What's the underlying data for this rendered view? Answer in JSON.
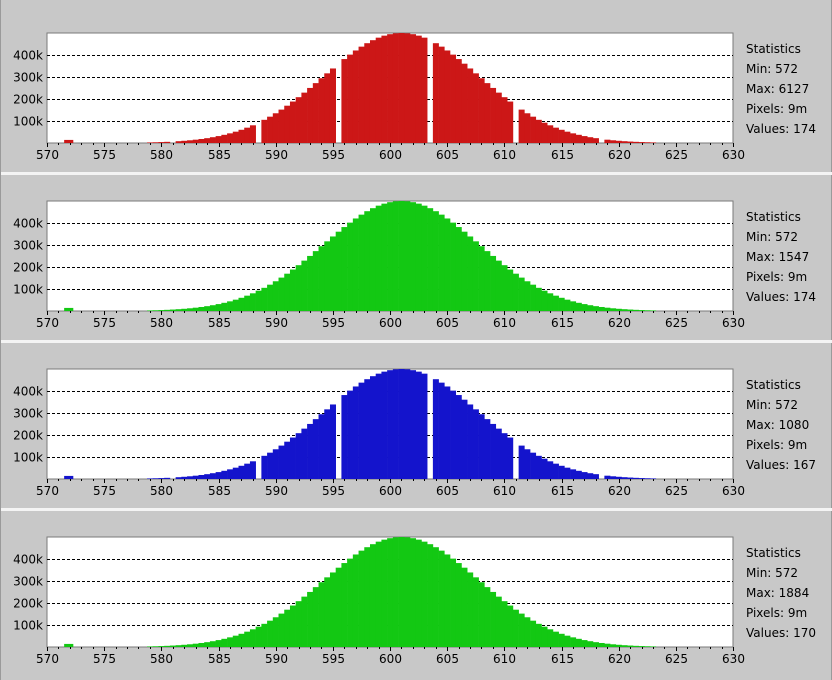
{
  "chart_data": [
    {
      "type": "bar",
      "color": "#cc1717",
      "x_range": [
        570,
        630
      ],
      "x_ticks": [
        "570",
        "575",
        "580",
        "585",
        "590",
        "595",
        "600",
        "605",
        "610",
        "615",
        "620",
        "625",
        "630"
      ],
      "y_ticks": [
        "100k",
        "200k",
        "300k",
        "400k"
      ],
      "y_max": 500000,
      "grid": true,
      "gaps": [
        572,
        573,
        574,
        578,
        581,
        588.5,
        595.5,
        603.5,
        611,
        618.5,
        626
      ],
      "statistics": {
        "title": "Statistics",
        "min": "Min: 572",
        "max": "Max: 6127",
        "pixels": "Pixels: 9m",
        "values": "Values: 174"
      }
    },
    {
      "type": "bar",
      "color": "#13c813",
      "x_range": [
        570,
        630
      ],
      "x_ticks": [
        "570",
        "575",
        "580",
        "585",
        "590",
        "595",
        "600",
        "605",
        "610",
        "615",
        "620",
        "625",
        "630"
      ],
      "y_ticks": [
        "100k",
        "200k",
        "300k",
        "400k"
      ],
      "y_max": 500000,
      "grid": true,
      "gaps": [],
      "statistics": {
        "title": "Statistics",
        "min": "Min: 572",
        "max": "Max: 1547",
        "pixels": "Pixels: 9m",
        "values": "Values: 174"
      }
    },
    {
      "type": "bar",
      "color": "#1414cc",
      "x_range": [
        570,
        630
      ],
      "x_ticks": [
        "570",
        "575",
        "580",
        "585",
        "590",
        "595",
        "600",
        "605",
        "610",
        "615",
        "620",
        "625",
        "630"
      ],
      "y_ticks": [
        "100k",
        "200k",
        "300k",
        "400k"
      ],
      "y_max": 500000,
      "grid": true,
      "gaps": [
        572,
        573,
        574,
        578,
        581,
        588.5,
        595.5,
        603.5,
        611,
        618.5,
        626
      ],
      "statistics": {
        "title": "Statistics",
        "min": "Min: 572",
        "max": "Max: 1080",
        "pixels": "Pixels: 9m",
        "values": "Values: 167"
      }
    },
    {
      "type": "bar",
      "color": "#13c813",
      "x_range": [
        570,
        630
      ],
      "x_ticks": [
        "570",
        "575",
        "580",
        "585",
        "590",
        "595",
        "600",
        "605",
        "610",
        "615",
        "620",
        "625",
        "630"
      ],
      "y_ticks": [
        "100k",
        "200k",
        "300k",
        "400k"
      ],
      "y_max": 500000,
      "grid": true,
      "gaps": [],
      "statistics": {
        "title": "Statistics",
        "min": "Min: 572",
        "max": "Max: 1884",
        "pixels": "Pixels: 9m",
        "values": "Values: 170"
      }
    }
  ]
}
